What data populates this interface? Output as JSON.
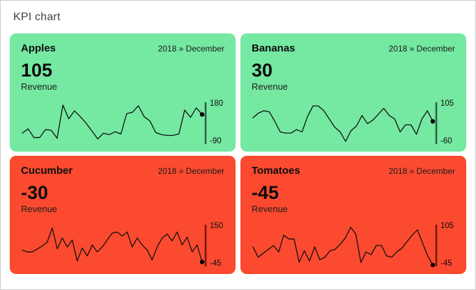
{
  "page": {
    "title": "KPI chart"
  },
  "colors": {
    "positive_bg": "#75E8A2",
    "negative_bg": "#FB4A2F",
    "positive_axis": "#2F5E43",
    "negative_axis": "#73170C",
    "sparkline": "#111111",
    "end_dot": "#000000"
  },
  "tiles": [
    {
      "name": "Apples",
      "period": "2018 » December",
      "value": "105",
      "metric": "Revenue",
      "sentiment": "positive",
      "axis_max": "180",
      "axis_min": "-90"
    },
    {
      "name": "Bananas",
      "period": "2018 » December",
      "value": "30",
      "metric": "Revenue",
      "sentiment": "positive",
      "axis_max": "105",
      "axis_min": "-60"
    },
    {
      "name": "Cucumber",
      "period": "2018 » December",
      "value": "-30",
      "metric": "Revenue",
      "sentiment": "negative",
      "axis_max": "150",
      "axis_min": "-45"
    },
    {
      "name": "Tomatoes",
      "period": "2018 » December",
      "value": "-45",
      "metric": "Revenue",
      "sentiment": "negative",
      "axis_max": "105",
      "axis_min": "-45"
    }
  ],
  "chart_data": [
    {
      "type": "line",
      "title": "Apples",
      "ylabel": "Revenue",
      "period": "2018 » December",
      "current_value": 105,
      "ylim": [
        -90,
        180
      ],
      "axis_tick_labels": [
        "180",
        "-90"
      ],
      "legend": "none",
      "grid": false,
      "values": [
        -25,
        5,
        -55,
        -55,
        0,
        -5,
        -60,
        170,
        75,
        130,
        90,
        45,
        -10,
        -65,
        -25,
        -35,
        -15,
        -30,
        110,
        120,
        165,
        90,
        60,
        -20,
        -35,
        -40,
        -40,
        -30,
        135,
        85,
        150,
        105
      ]
    },
    {
      "type": "line",
      "title": "Bananas",
      "ylabel": "Revenue",
      "period": "2018 » December",
      "current_value": 30,
      "ylim": [
        -60,
        105
      ],
      "axis_tick_labels": [
        "105",
        "-60"
      ],
      "legend": "none",
      "grid": false,
      "values": [
        45,
        65,
        75,
        70,
        30,
        -15,
        -20,
        -20,
        -5,
        -15,
        50,
        95,
        95,
        75,
        40,
        5,
        -15,
        -55,
        -10,
        10,
        55,
        20,
        35,
        60,
        85,
        55,
        40,
        -15,
        15,
        15,
        -25,
        40,
        75,
        30
      ]
    },
    {
      "type": "line",
      "title": "Cucumber",
      "ylabel": "Revenue",
      "period": "2018 » December",
      "current_value": -30,
      "ylim": [
        -45,
        150
      ],
      "axis_tick_labels": [
        "150",
        "-45"
      ],
      "legend": "none",
      "grid": false,
      "values": [
        30,
        20,
        20,
        35,
        50,
        70,
        140,
        35,
        90,
        45,
        80,
        -25,
        40,
        0,
        55,
        20,
        45,
        80,
        115,
        120,
        100,
        120,
        45,
        90,
        55,
        30,
        -20,
        45,
        90,
        110,
        75,
        120,
        55,
        95,
        20,
        55,
        -30
      ]
    },
    {
      "type": "line",
      "title": "Tomatoes",
      "ylabel": "Revenue",
      "period": "2018 » December",
      "current_value": -45,
      "ylim": [
        -45,
        105
      ],
      "axis_tick_labels": [
        "105",
        "-45"
      ],
      "legend": "none",
      "grid": false,
      "values": [
        25,
        -15,
        0,
        15,
        30,
        5,
        70,
        55,
        55,
        -35,
        10,
        -30,
        25,
        -25,
        -15,
        10,
        15,
        35,
        60,
        100,
        75,
        -35,
        5,
        -5,
        30,
        30,
        -10,
        -15,
        5,
        20,
        45,
        70,
        90,
        40,
        -10,
        -45
      ]
    }
  ]
}
